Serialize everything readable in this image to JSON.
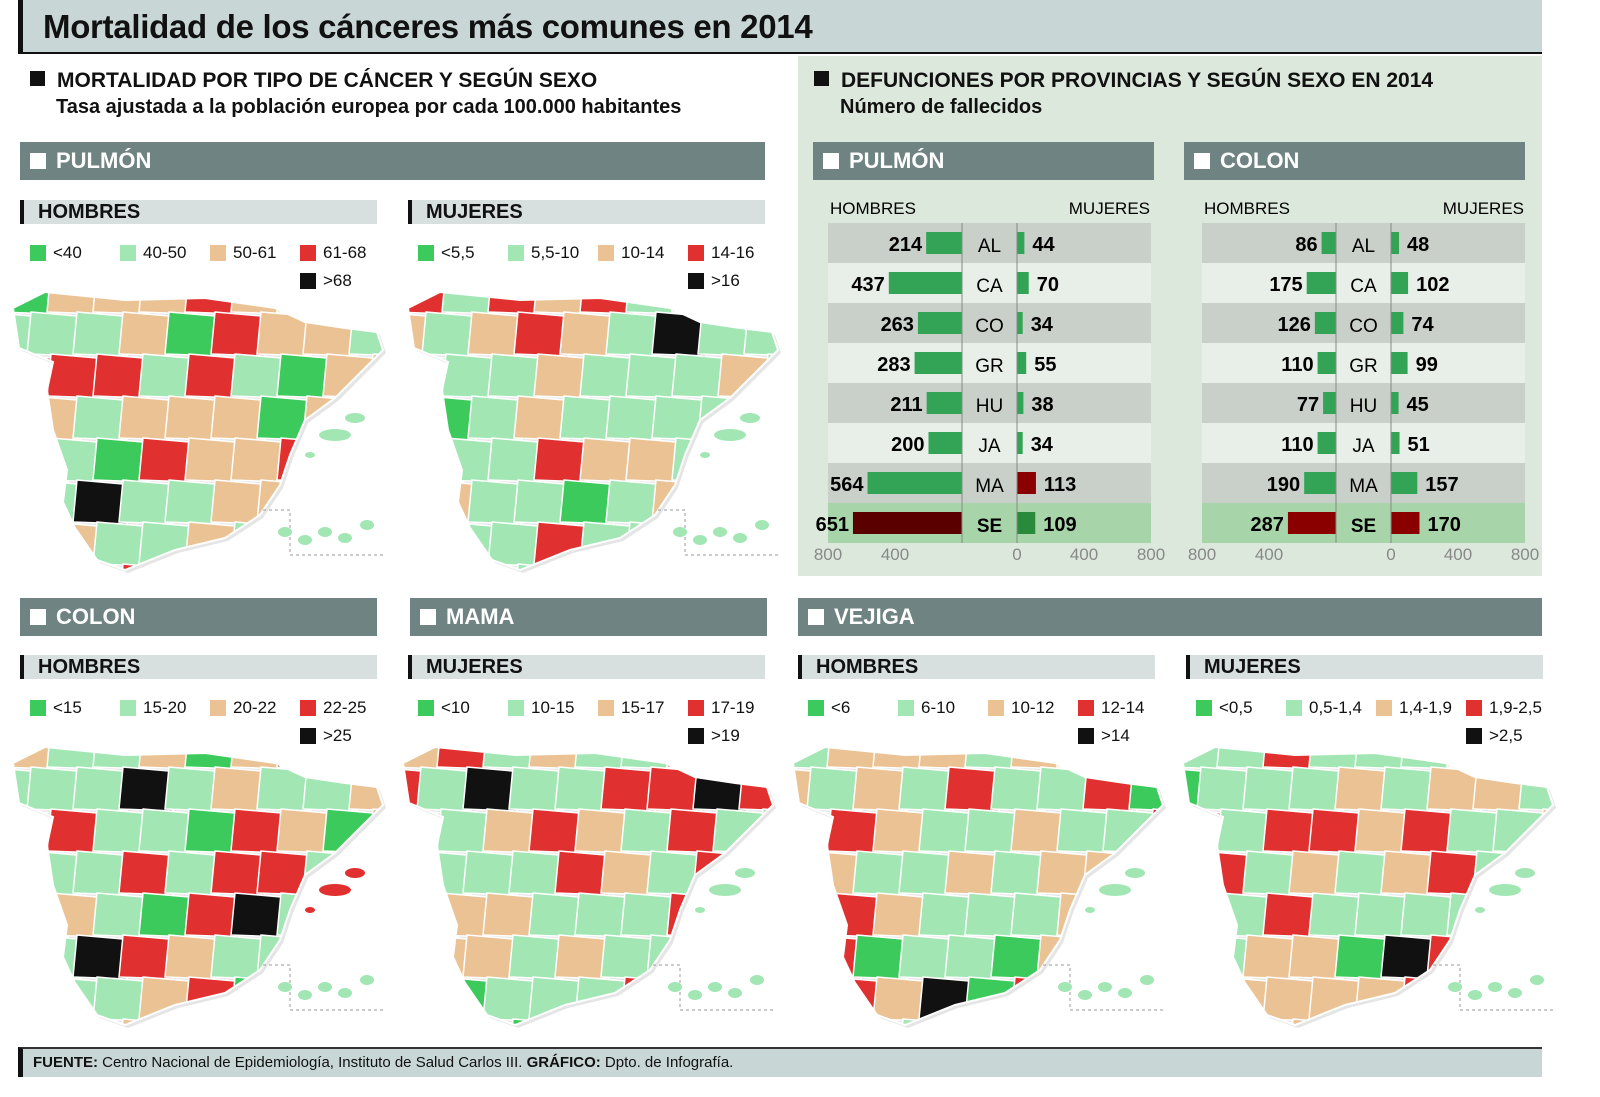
{
  "title": "Mortalidad de los cánceres más comunes en 2014",
  "left_section": {
    "heading": "MORTALIDAD POR TIPO DE CÁNCER Y SEGÚN SEXO",
    "subheading": "Tasa ajustada a la población europea por cada 100.000 habitantes"
  },
  "right_section": {
    "heading": "DEFUNCIONES POR PROVINCIAS Y SEGÚN SEXO EN 2014",
    "subheading": "Número de fallecidos"
  },
  "colors": {
    "dark_green": "#3dca5c",
    "light_green": "#a2e6b4",
    "tan": "#ebc294",
    "red": "#e0302f",
    "black": "#111111",
    "bar_green": "#33a355",
    "bar_red": "#8a0000",
    "band": "#6f8482"
  },
  "bands": {
    "pulmon": "PULMÓN",
    "colon": "COLON",
    "mama": "MAMA",
    "vejiga": "VEJIGA"
  },
  "chart_data": [
    {
      "type": "map",
      "cancer": "PULMÓN",
      "sex": "HOMBRES",
      "legend": [
        "<40",
        "40-50",
        "50-61",
        "61-68",
        ">68"
      ]
    },
    {
      "type": "map",
      "cancer": "PULMÓN",
      "sex": "MUJERES",
      "legend": [
        "<5,5",
        "5,5-10",
        "10-14",
        "14-16",
        ">16"
      ]
    },
    {
      "type": "map",
      "cancer": "COLON",
      "sex": "HOMBRES",
      "legend": [
        "<15",
        "15-20",
        "20-22",
        "22-25",
        ">25"
      ]
    },
    {
      "type": "map",
      "cancer": "MAMA",
      "sex": "MUJERES",
      "legend": [
        "<10",
        "10-15",
        "15-17",
        "17-19",
        ">19"
      ]
    },
    {
      "type": "map",
      "cancer": "VEJIGA",
      "sex": "HOMBRES",
      "legend": [
        "<6",
        "6-10",
        "10-12",
        "12-14",
        ">14"
      ]
    },
    {
      "type": "map",
      "cancer": "VEJIGA",
      "sex": "MUJERES",
      "legend": [
        "<0,5",
        "0,5-1,4",
        "1,4-1,9",
        "1,9-2,5",
        ">2,5"
      ]
    },
    {
      "type": "bar",
      "title": "PULMÓN",
      "left_label": "HOMBRES",
      "right_label": "MUJERES",
      "categories": [
        "AL",
        "CA",
        "CO",
        "GR",
        "HU",
        "JA",
        "MA",
        "SE"
      ],
      "series": [
        {
          "name": "HOMBRES",
          "values": [
            214,
            437,
            263,
            283,
            211,
            200,
            564,
            651
          ]
        },
        {
          "name": "MUJERES",
          "values": [
            44,
            70,
            34,
            55,
            38,
            34,
            113,
            109
          ]
        }
      ],
      "highlight": {
        "HOMBRES": [
          "SE"
        ],
        "MUJERES": [
          "MA"
        ]
      },
      "ticks_left": [
        "800",
        "400"
      ],
      "ticks_right": [
        "0",
        "400",
        "800"
      ],
      "xlim": [
        0,
        800
      ]
    },
    {
      "type": "bar",
      "title": "COLON",
      "left_label": "HOMBRES",
      "right_label": "MUJERES",
      "categories": [
        "AL",
        "CA",
        "CO",
        "GR",
        "HU",
        "JA",
        "MA",
        "SE"
      ],
      "series": [
        {
          "name": "HOMBRES",
          "values": [
            86,
            175,
            126,
            110,
            77,
            110,
            190,
            287
          ]
        },
        {
          "name": "MUJERES",
          "values": [
            48,
            102,
            74,
            99,
            45,
            51,
            157,
            170
          ]
        }
      ],
      "highlight": {
        "HOMBRES": [
          "SE"
        ],
        "MUJERES": [
          "SE"
        ]
      },
      "ticks_left": [
        "800",
        "400"
      ],
      "ticks_right": [
        "0",
        "400",
        "800"
      ],
      "xlim": [
        0,
        800
      ]
    }
  ],
  "footer": {
    "source_label": "FUENTE:",
    "source": " Centro Nacional de Epidemiología, Instituto de Salud Carlos III. ",
    "graphic_label": "GRÁFICO:",
    "graphic": " Dpto. de Infografía."
  }
}
